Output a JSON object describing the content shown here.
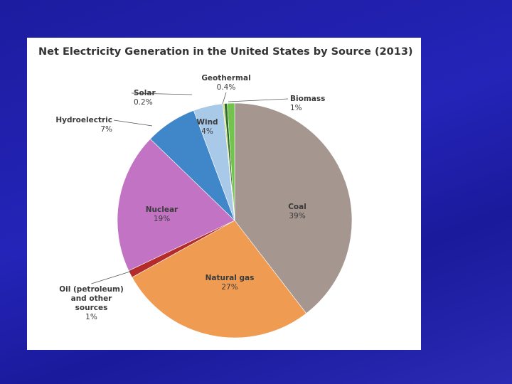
{
  "chart_data": {
    "type": "pie",
    "title": "Net Electricity Generation in the United States by Source (2013)",
    "categories": [
      "Coal",
      "Natural gas",
      "Oil (petroleum) and other sources",
      "Nuclear",
      "Hydroelectric",
      "Wind",
      "Solar",
      "Geothermal",
      "Biomass"
    ],
    "values": [
      39,
      27,
      1,
      19,
      7,
      4,
      0.2,
      0.4,
      1
    ],
    "value_labels": [
      "39%",
      "27%",
      "1%",
      "19%",
      "7%",
      "4%",
      "0.2%",
      "0.4%",
      "1%"
    ],
    "colors": [
      "#a59690",
      "#ef9b52",
      "#b52a2a",
      "#c273c3",
      "#3f87c9",
      "#a9c9e9",
      "#d8d86a",
      "#2f6e2a",
      "#72c44c"
    ]
  }
}
